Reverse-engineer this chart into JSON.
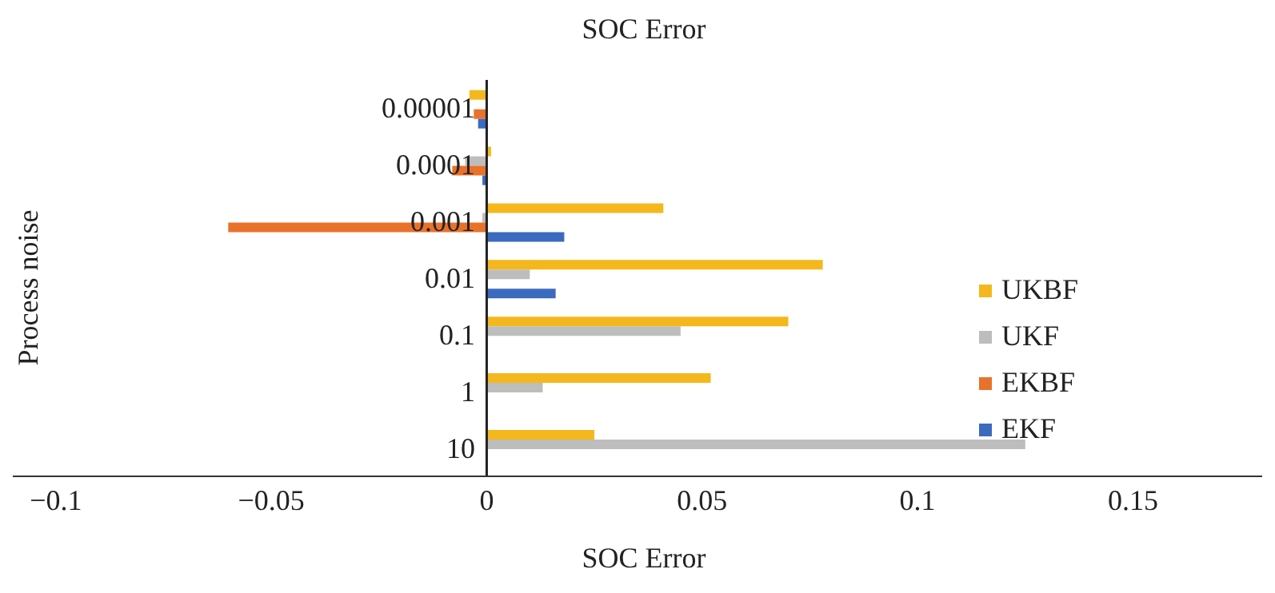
{
  "chart_data": {
    "type": "bar",
    "orientation": "horizontal",
    "title": "SOC Error",
    "xlabel": "SOC Error",
    "ylabel": "Process noise",
    "categories": [
      "0.00001",
      "0.0001",
      "0.001",
      "0.01",
      "0.1",
      "1",
      "10"
    ],
    "series": [
      {
        "name": "UKBF",
        "color": "#f4b81c",
        "values": [
          -0.004,
          0.001,
          0.041,
          0.078,
          0.07,
          0.052,
          0.025
        ]
      },
      {
        "name": "UKF",
        "color": "#bdbdbd",
        "values": [
          null,
          -0.005,
          -0.001,
          0.01,
          0.045,
          0.013,
          0.125
        ]
      },
      {
        "name": "EKBF",
        "color": "#e8722a",
        "values": [
          -0.003,
          -0.008,
          -0.06,
          null,
          null,
          null,
          null
        ]
      },
      {
        "name": "EKF",
        "color": "#3b6bbf",
        "values": [
          -0.002,
          -0.001,
          0.018,
          0.016,
          null,
          null,
          null
        ]
      }
    ],
    "xlim": [
      -0.11,
      0.18
    ],
    "xticks": [
      {
        "value": -0.1,
        "label": "−0.1"
      },
      {
        "value": -0.05,
        "label": "−0.05"
      },
      0,
      0.05,
      0.1,
      0.15
    ],
    "grid": false,
    "legend": "right"
  }
}
